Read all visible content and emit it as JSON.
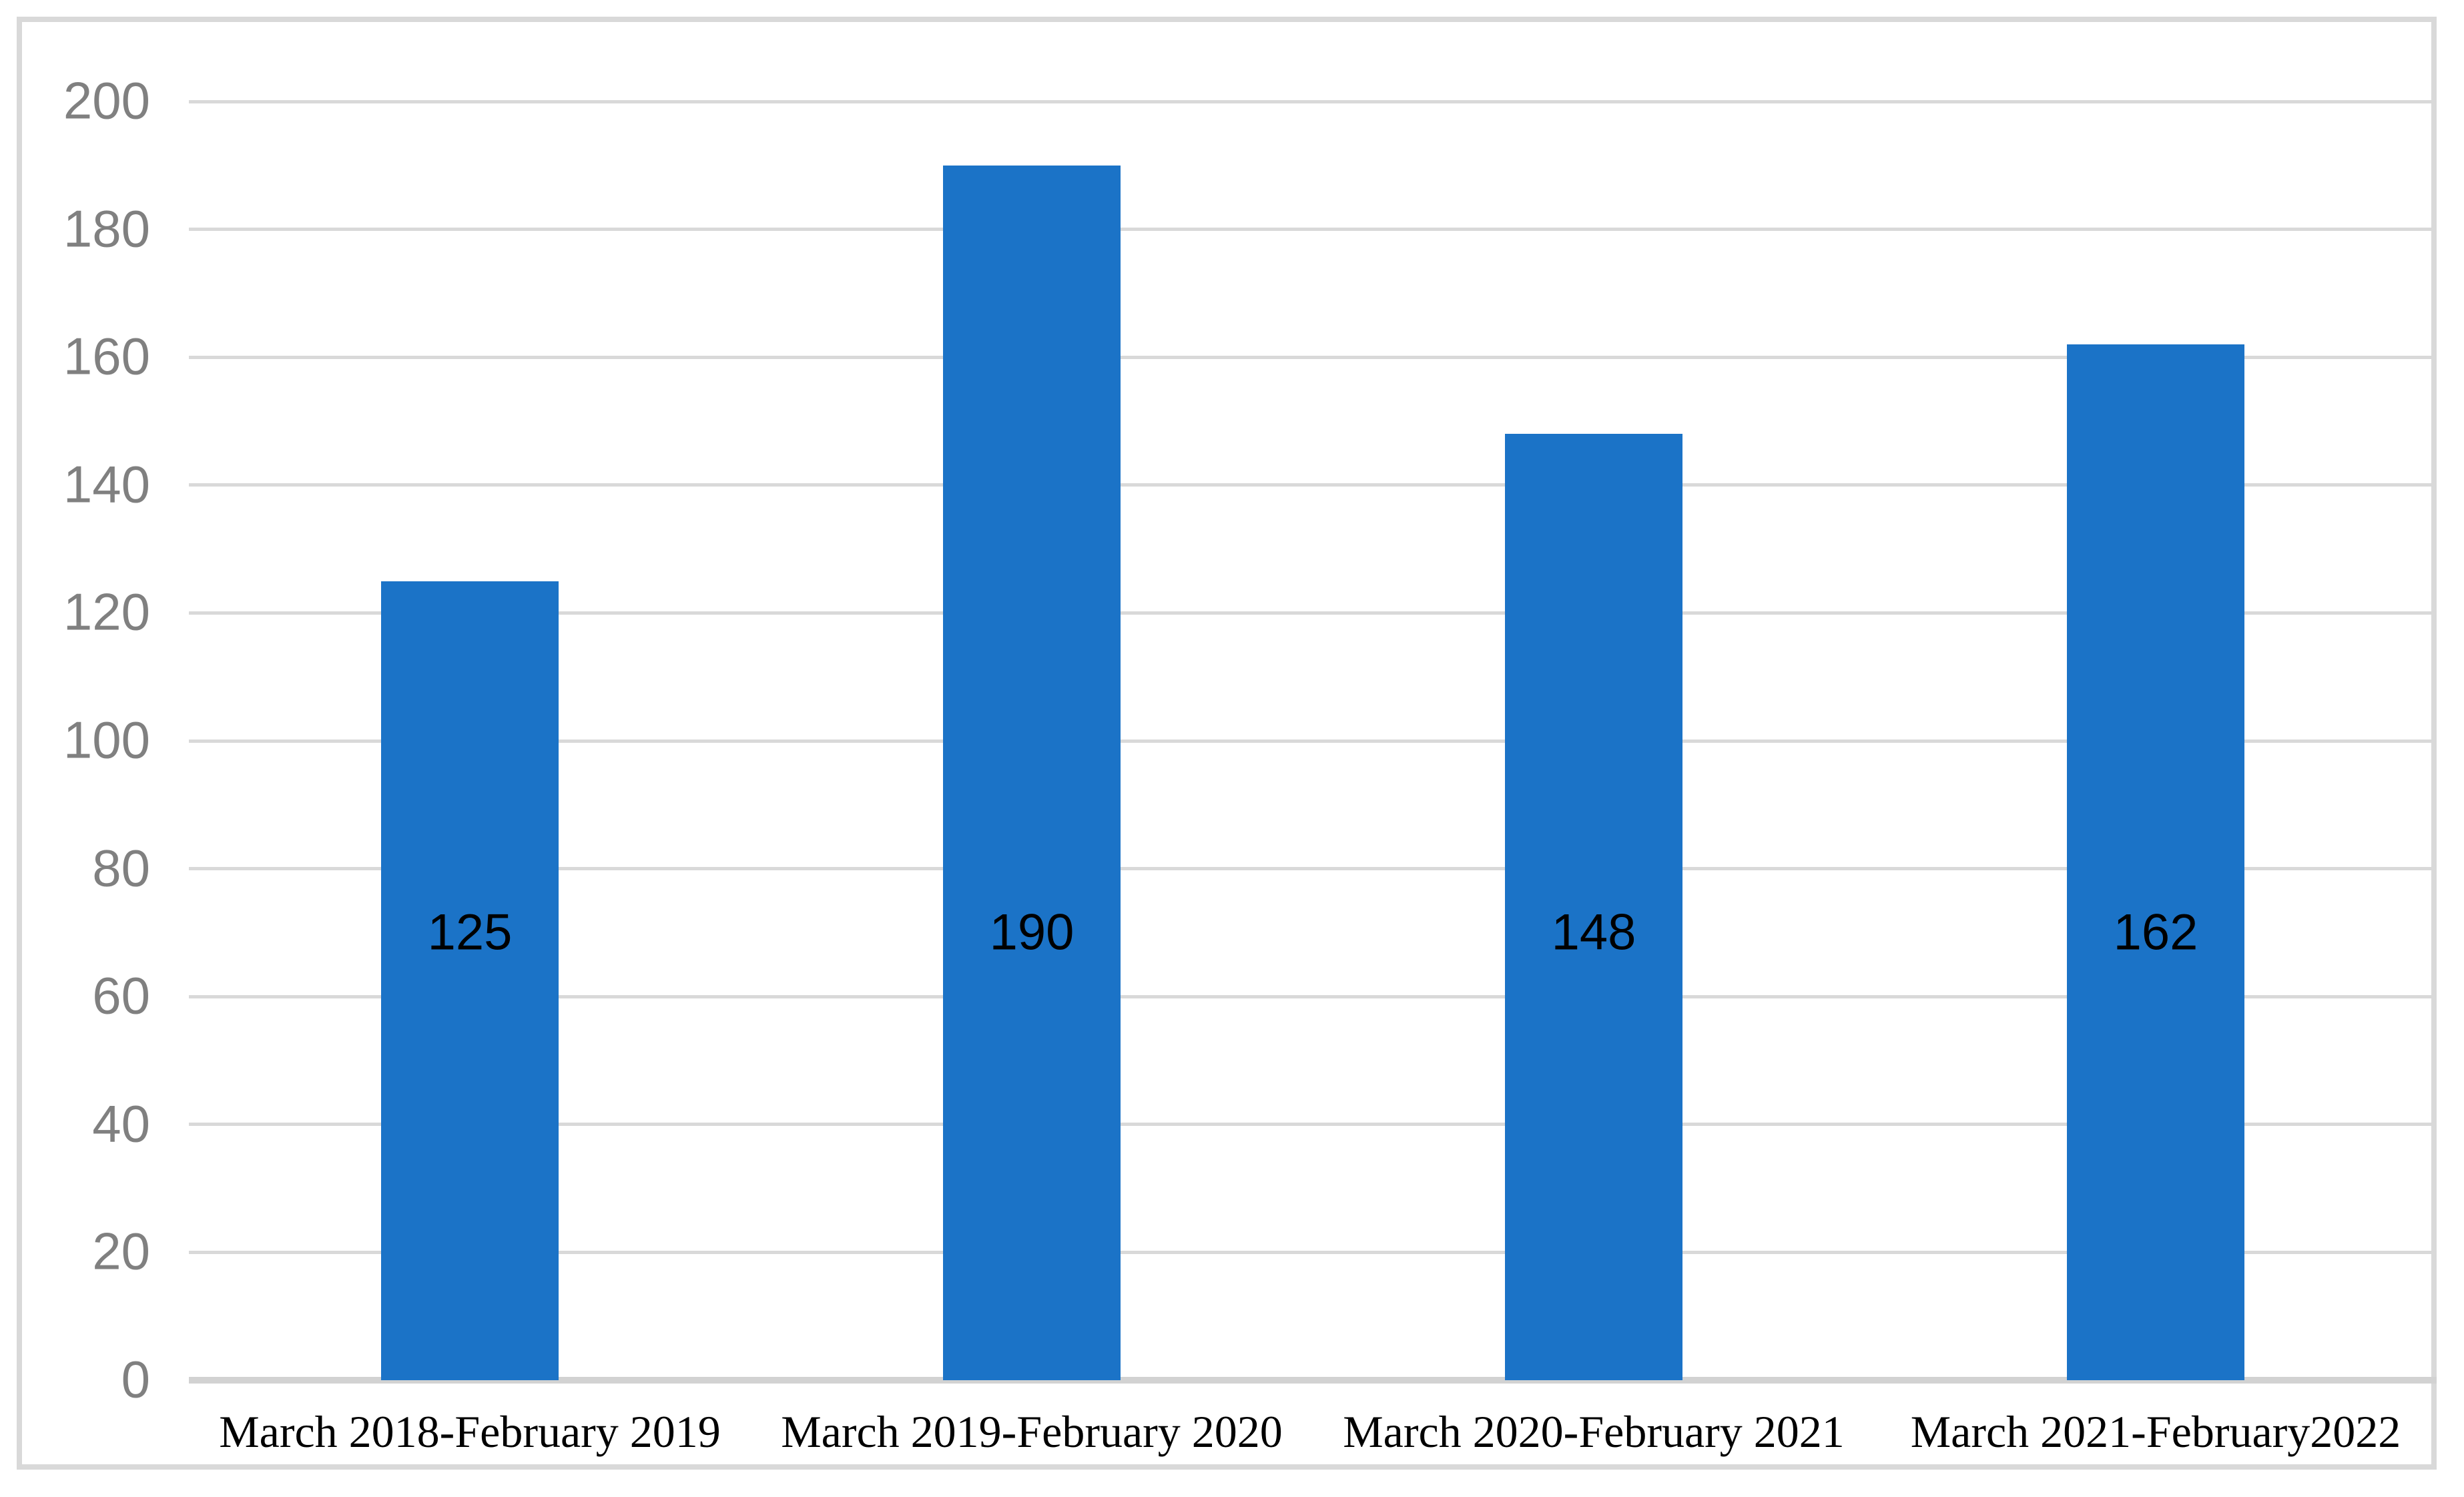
{
  "chart_data": {
    "type": "bar",
    "title": "",
    "xlabel": "",
    "ylabel": "",
    "categories": [
      "March 2018-February 2019",
      "March 2019-February 2020",
      "March 2020-February 2021",
      "March 2021-February2022"
    ],
    "values": [
      125,
      190,
      148,
      162
    ],
    "data_labels": [
      "125",
      "190",
      "148",
      "162"
    ],
    "data_label_position": "inside",
    "ylim": [
      0,
      200
    ],
    "ytick_step": 20,
    "yticks": [
      0,
      20,
      40,
      60,
      80,
      100,
      120,
      140,
      160,
      180,
      200
    ],
    "grid": "horizontal-on",
    "legend": "none",
    "colors": {
      "bar_fill": "#1B73C7",
      "gridline": "#D9D9D9",
      "axis_line": "#D2D2D2",
      "tick_text": "#808080",
      "category_text": "#000000",
      "data_label_text": "#000000",
      "border": "#D9D9D9",
      "background": "#FFFFFF"
    }
  }
}
